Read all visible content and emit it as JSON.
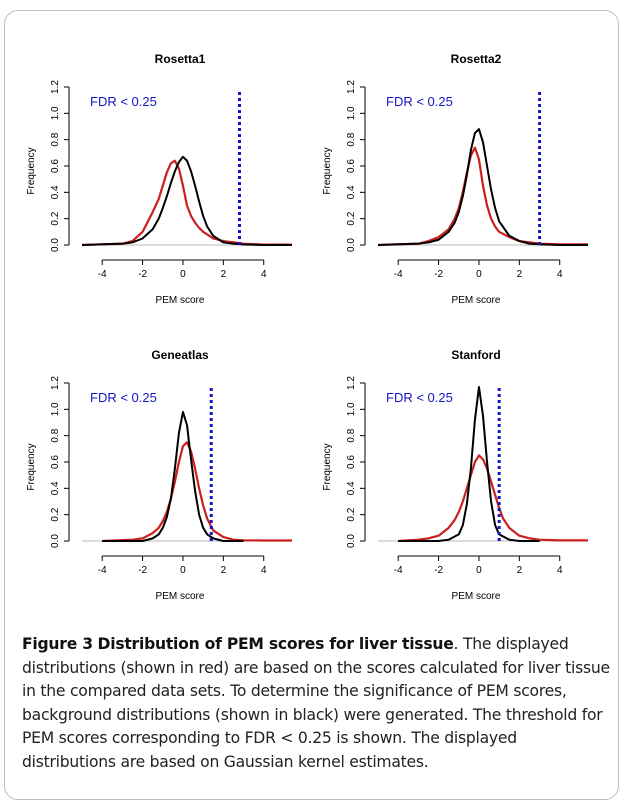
{
  "figure": {
    "caption_label": "Figure 3",
    "caption_title": "Distribution of PEM scores for liver tissue",
    "caption_text": ". The displayed distributions (shown in red) are based on the scores calculated for liver tissue in the compared data sets. To determine the significance of PEM scores, background distributions (shown in black) were generated. The threshold for PEM scores corresponding to FDR < 0.25 is shown. The displayed distributions are based on Gaussian kernel estimates."
  },
  "colors": {
    "observed": "#cc1f1f",
    "background": "#000000",
    "threshold": "#1515c8",
    "baseline": "#b8b8b8"
  },
  "chart_data": [
    {
      "type": "line",
      "title": "Rosetta1",
      "xlabel": "PEM score",
      "ylabel": "Frequency",
      "xlim": [
        -5,
        5.4
      ],
      "ylim": [
        0,
        1.2
      ],
      "xticks": [
        -4,
        -2,
        0,
        2,
        4
      ],
      "yticks": [
        0.0,
        0.2,
        0.4,
        0.6,
        0.8,
        1.0,
        1.2
      ],
      "annotation": "FDR < 0.25",
      "threshold": 2.8,
      "series": [
        {
          "color": "red",
          "x": [
            -5,
            -3,
            -2.5,
            -2,
            -1.5,
            -1.2,
            -1,
            -0.8,
            -0.6,
            -0.4,
            -0.2,
            0,
            0.2,
            0.4,
            0.6,
            0.8,
            1,
            1.5,
            2,
            2.5,
            3,
            4,
            5.4
          ],
          "y": [
            0,
            0.01,
            0.03,
            0.1,
            0.25,
            0.35,
            0.45,
            0.55,
            0.62,
            0.64,
            0.58,
            0.45,
            0.3,
            0.22,
            0.17,
            0.13,
            0.1,
            0.05,
            0.03,
            0.02,
            0.01,
            0.003,
            0.003
          ]
        },
        {
          "color": "black",
          "x": [
            -5,
            -3,
            -2.5,
            -2,
            -1.5,
            -1.2,
            -1,
            -0.8,
            -0.6,
            -0.4,
            -0.2,
            0,
            0.2,
            0.4,
            0.6,
            0.8,
            1,
            1.2,
            1.5,
            2,
            2.5,
            3,
            4,
            5.4
          ],
          "y": [
            0,
            0.01,
            0.02,
            0.05,
            0.12,
            0.2,
            0.28,
            0.37,
            0.47,
            0.56,
            0.63,
            0.67,
            0.64,
            0.56,
            0.45,
            0.33,
            0.22,
            0.14,
            0.07,
            0.02,
            0.01,
            0.004,
            0,
            0
          ]
        }
      ]
    },
    {
      "type": "line",
      "title": "Rosetta2",
      "xlabel": "PEM score",
      "ylabel": "Frequency",
      "xlim": [
        -5,
        5.4
      ],
      "ylim": [
        0,
        1.2
      ],
      "xticks": [
        -4,
        -2,
        0,
        2,
        4
      ],
      "yticks": [
        0.0,
        0.2,
        0.4,
        0.6,
        0.8,
        1.0,
        1.2
      ],
      "annotation": "FDR < 0.25",
      "threshold": 3.0,
      "series": [
        {
          "color": "red",
          "x": [
            -5,
            -3,
            -2.5,
            -2,
            -1.5,
            -1.2,
            -1,
            -0.8,
            -0.6,
            -0.4,
            -0.2,
            0,
            0.2,
            0.4,
            0.6,
            0.8,
            1,
            1.5,
            2,
            2.5,
            3,
            4,
            5.4
          ],
          "y": [
            0,
            0.01,
            0.03,
            0.06,
            0.12,
            0.2,
            0.28,
            0.4,
            0.55,
            0.68,
            0.74,
            0.65,
            0.45,
            0.3,
            0.2,
            0.14,
            0.1,
            0.06,
            0.03,
            0.02,
            0.01,
            0.005,
            0.005
          ]
        },
        {
          "color": "black",
          "x": [
            -5,
            -3,
            -2.5,
            -2,
            -1.5,
            -1.2,
            -1,
            -0.8,
            -0.6,
            -0.4,
            -0.2,
            0,
            0.2,
            0.4,
            0.6,
            0.8,
            1,
            1.5,
            2,
            2.5,
            3,
            4,
            5.4
          ],
          "y": [
            0,
            0.01,
            0.02,
            0.04,
            0.1,
            0.17,
            0.25,
            0.37,
            0.53,
            0.72,
            0.85,
            0.88,
            0.78,
            0.6,
            0.42,
            0.28,
            0.18,
            0.07,
            0.03,
            0.01,
            0.005,
            0,
            0
          ]
        }
      ]
    },
    {
      "type": "line",
      "title": "Geneatlas",
      "xlabel": "PEM score",
      "ylabel": "Frequency",
      "xlim": [
        -5,
        5.4
      ],
      "ylim": [
        0,
        1.2
      ],
      "xticks": [
        -4,
        -2,
        0,
        2,
        4
      ],
      "yticks": [
        0.0,
        0.2,
        0.4,
        0.6,
        0.8,
        1.0,
        1.2
      ],
      "annotation": "FDR < 0.25",
      "threshold": 1.4,
      "series": [
        {
          "color": "red",
          "x": [
            -4,
            -2.5,
            -2,
            -1.5,
            -1.2,
            -1,
            -0.8,
            -0.6,
            -0.4,
            -0.2,
            0,
            0.2,
            0.4,
            0.6,
            0.8,
            1,
            1.2,
            1.5,
            2,
            2.5,
            3,
            4,
            5.4
          ],
          "y": [
            0,
            0.01,
            0.02,
            0.06,
            0.1,
            0.15,
            0.22,
            0.32,
            0.45,
            0.6,
            0.72,
            0.75,
            0.68,
            0.55,
            0.4,
            0.27,
            0.17,
            0.08,
            0.03,
            0.01,
            0.005,
            0.004,
            0.004
          ]
        },
        {
          "color": "black",
          "x": [
            -4,
            -2,
            -1.5,
            -1.2,
            -1,
            -0.8,
            -0.6,
            -0.4,
            -0.2,
            0,
            0.2,
            0.4,
            0.6,
            0.8,
            1,
            1.2,
            1.5,
            2,
            2.5,
            3
          ],
          "y": [
            0,
            0,
            0.02,
            0.05,
            0.1,
            0.18,
            0.32,
            0.55,
            0.82,
            0.98,
            0.88,
            0.62,
            0.38,
            0.2,
            0.1,
            0.05,
            0.02,
            0,
            0,
            0
          ]
        }
      ]
    },
    {
      "type": "line",
      "title": "Stanford",
      "xlabel": "PEM score",
      "ylabel": "Frequency",
      "xlim": [
        -5,
        5.4
      ],
      "ylim": [
        0,
        1.2
      ],
      "xticks": [
        -4,
        -2,
        0,
        2,
        4
      ],
      "yticks": [
        0.0,
        0.2,
        0.4,
        0.6,
        0.8,
        1.0,
        1.2
      ],
      "annotation": "FDR < 0.25",
      "threshold": 1.0,
      "series": [
        {
          "color": "red",
          "x": [
            -4,
            -3,
            -2.5,
            -2,
            -1.5,
            -1.2,
            -1,
            -0.8,
            -0.6,
            -0.4,
            -0.2,
            0,
            0.2,
            0.4,
            0.6,
            0.8,
            1,
            1.2,
            1.5,
            2,
            2.5,
            3,
            4,
            5.4
          ],
          "y": [
            0,
            0.01,
            0.02,
            0.04,
            0.1,
            0.16,
            0.22,
            0.3,
            0.4,
            0.5,
            0.6,
            0.65,
            0.62,
            0.55,
            0.45,
            0.35,
            0.25,
            0.17,
            0.1,
            0.04,
            0.02,
            0.01,
            0.005,
            0.005
          ]
        },
        {
          "color": "black",
          "x": [
            -4,
            -2,
            -1.5,
            -1,
            -0.8,
            -0.6,
            -0.4,
            -0.2,
            0,
            0.2,
            0.4,
            0.6,
            0.8,
            1,
            1.5,
            2,
            3
          ],
          "y": [
            0,
            0,
            0.01,
            0.05,
            0.12,
            0.28,
            0.55,
            0.92,
            1.17,
            0.95,
            0.6,
            0.3,
            0.12,
            0.05,
            0.01,
            0,
            0
          ]
        }
      ]
    }
  ]
}
